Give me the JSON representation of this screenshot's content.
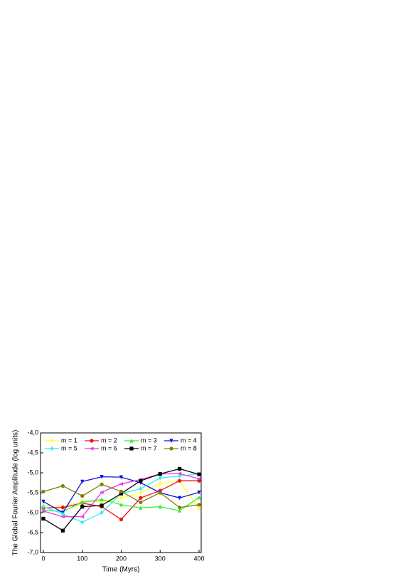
{
  "chart_data": {
    "type": "line",
    "x_label": "Time (Myrs)",
    "y_label": "The Global Fourier Amplitude (log units)",
    "x": [
      0,
      50,
      100,
      150,
      200,
      250,
      300,
      350,
      400
    ],
    "xlim": [
      -7.3,
      405.5
    ],
    "xticks": [
      0,
      100,
      200,
      300,
      400
    ],
    "ylim": [
      -7,
      -4
    ],
    "yticks": [
      {
        "value": -7,
        "label": "-7,0"
      },
      {
        "value": -6.5,
        "label": "-6,5"
      },
      {
        "value": -6,
        "label": "-6,0"
      },
      {
        "value": -5.5,
        "label": "-5,5"
      },
      {
        "value": -5,
        "label": "-5,0"
      },
      {
        "value": -4.5,
        "label": "-4,5"
      },
      {
        "value": -4,
        "label": "-4,0"
      }
    ],
    "legend": "top",
    "series": [
      {
        "name": "m = 1",
        "color": "#ffff33",
        "marker": "diamond",
        "values": [
          -5.81,
          -5.85,
          -5.72,
          -5.72,
          -5.63,
          -5.5,
          -5.27,
          -5.2,
          -5.9
        ]
      },
      {
        "name": "m = 2",
        "color": "#ee1111",
        "marker": "circle",
        "values": [
          -5.88,
          -5.87,
          -5.76,
          -5.85,
          -6.17,
          -5.63,
          -5.45,
          -5.2,
          -5.2
        ]
      },
      {
        "name": "m = 3",
        "color": "#33ee33",
        "marker": "triangle-up",
        "values": [
          -5.94,
          -5.97,
          -5.74,
          -5.67,
          -5.8,
          -5.88,
          -5.85,
          -5.95,
          -5.62
        ]
      },
      {
        "name": "m = 4",
        "color": "#1111dd",
        "marker": "triangle-down",
        "values": [
          -5.72,
          -6.0,
          -5.22,
          -5.1,
          -5.11,
          -5.25,
          -5.5,
          -5.63,
          -5.49
        ]
      },
      {
        "name": "m = 5",
        "color": "#33eeee",
        "marker": "diamond",
        "values": [
          -5.85,
          -6.03,
          -6.24,
          -6.0,
          -5.52,
          -5.4,
          -5.13,
          -5.08,
          -5.03
        ]
      },
      {
        "name": "m = 6",
        "color": "#ee33ee",
        "marker": "triangle-left",
        "values": [
          -5.96,
          -6.1,
          -6.1,
          -5.49,
          -5.28,
          -5.17,
          -5.03,
          -5.02,
          -5.15
        ]
      },
      {
        "name": "m = 7",
        "color": "#000000",
        "marker": "square",
        "values": [
          -6.15,
          -6.45,
          -5.85,
          -5.82,
          -5.52,
          -5.2,
          -5.03,
          -4.9,
          -5.04
        ]
      },
      {
        "name": "m = 8",
        "color": "#808000",
        "marker": "circle",
        "values": [
          -5.47,
          -5.33,
          -5.58,
          -5.29,
          -5.47,
          -5.74,
          -5.5,
          -5.87,
          -5.8
        ]
      }
    ]
  }
}
